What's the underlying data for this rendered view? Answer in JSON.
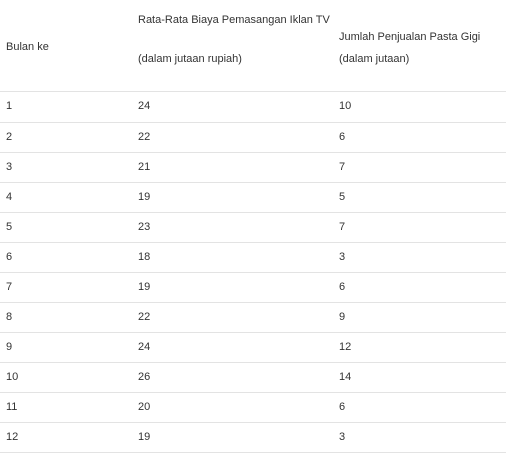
{
  "table": {
    "headers": {
      "col1": "Bulan ke",
      "col2_line1": "Rata-Rata Biaya Pemasangan Iklan TV",
      "col2_line2": "(dalam jutaan rupiah)",
      "col3_line1": "Jumlah Penjualan Pasta Gigi",
      "col3_line2": "(dalam jutaan)"
    },
    "rows": [
      {
        "bulan": "1",
        "biaya": "24",
        "penjualan": "10"
      },
      {
        "bulan": "2",
        "biaya": "22",
        "penjualan": "6"
      },
      {
        "bulan": "3",
        "biaya": "21",
        "penjualan": "7"
      },
      {
        "bulan": "4",
        "biaya": "19",
        "penjualan": "5"
      },
      {
        "bulan": "5",
        "biaya": "23",
        "penjualan": "7"
      },
      {
        "bulan": "6",
        "biaya": "18",
        "penjualan": "3"
      },
      {
        "bulan": "7",
        "biaya": "19",
        "penjualan": "6"
      },
      {
        "bulan": "8",
        "biaya": "22",
        "penjualan": "9"
      },
      {
        "bulan": "9",
        "biaya": "24",
        "penjualan": "12"
      },
      {
        "bulan": "10",
        "biaya": "26",
        "penjualan": "14"
      },
      {
        "bulan": "11",
        "biaya": "20",
        "penjualan": "6"
      },
      {
        "bulan": "12",
        "biaya": "19",
        "penjualan": "3"
      }
    ]
  }
}
